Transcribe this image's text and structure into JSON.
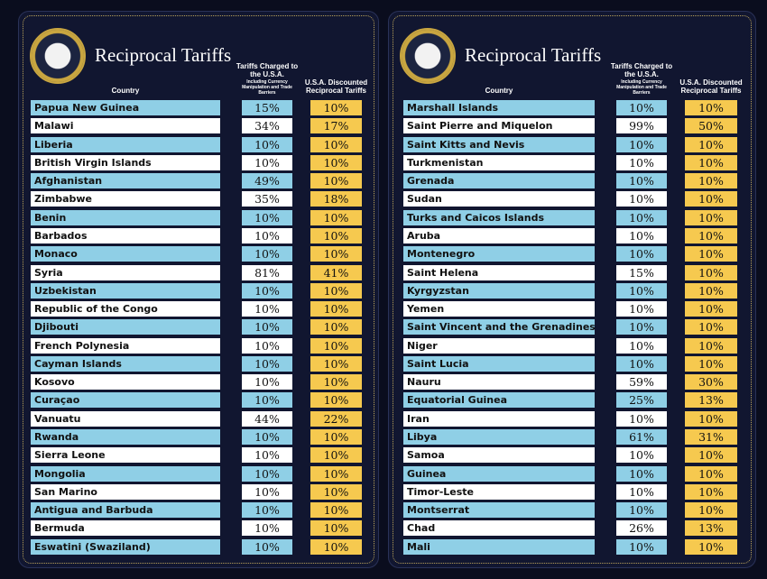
{
  "panels": [
    {
      "title": "Reciprocal Tariffs",
      "header": {
        "country": "Country",
        "charged": "Tariffs Charged to the U.S.A.",
        "charged_note": "Including Currency Manipulation and Trade Barriers",
        "discounted": "U.S.A. Discounted Reciprocal Tariffs"
      },
      "rows": [
        [
          "Papua New Guinea",
          "15%",
          "10%"
        ],
        [
          "Malawi",
          "34%",
          "17%"
        ],
        [
          "Liberia",
          "10%",
          "10%"
        ],
        [
          "British Virgin Islands",
          "10%",
          "10%"
        ],
        [
          "Afghanistan",
          "49%",
          "10%"
        ],
        [
          "Zimbabwe",
          "35%",
          "18%"
        ],
        [
          "Benin",
          "10%",
          "10%"
        ],
        [
          "Barbados",
          "10%",
          "10%"
        ],
        [
          "Monaco",
          "10%",
          "10%"
        ],
        [
          "Syria",
          "81%",
          "41%"
        ],
        [
          "Uzbekistan",
          "10%",
          "10%"
        ],
        [
          "Republic of the Congo",
          "10%",
          "10%"
        ],
        [
          "Djibouti",
          "10%",
          "10%"
        ],
        [
          "French Polynesia",
          "10%",
          "10%"
        ],
        [
          "Cayman Islands",
          "10%",
          "10%"
        ],
        [
          "Kosovo",
          "10%",
          "10%"
        ],
        [
          "Curaçao",
          "10%",
          "10%"
        ],
        [
          "Vanuatu",
          "44%",
          "22%"
        ],
        [
          "Rwanda",
          "10%",
          "10%"
        ],
        [
          "Sierra Leone",
          "10%",
          "10%"
        ],
        [
          "Mongolia",
          "10%",
          "10%"
        ],
        [
          "San Marino",
          "10%",
          "10%"
        ],
        [
          "Antigua and Barbuda",
          "10%",
          "10%"
        ],
        [
          "Bermuda",
          "10%",
          "10%"
        ],
        [
          "Eswatini (Swaziland)",
          "10%",
          "10%"
        ]
      ]
    },
    {
      "title": "Reciprocal Tariffs",
      "header": {
        "country": "Country",
        "charged": "Tariffs Charged to the U.S.A.",
        "charged_note": "Including Currency Manipulation and Trade Barriers",
        "discounted": "U.S.A. Discounted Reciprocal Tariffs"
      },
      "rows": [
        [
          "Marshall Islands",
          "10%",
          "10%"
        ],
        [
          "Saint Pierre and Miquelon",
          "99%",
          "50%"
        ],
        [
          "Saint Kitts and Nevis",
          "10%",
          "10%"
        ],
        [
          "Turkmenistan",
          "10%",
          "10%"
        ],
        [
          "Grenada",
          "10%",
          "10%"
        ],
        [
          "Sudan",
          "10%",
          "10%"
        ],
        [
          "Turks and Caicos Islands",
          "10%",
          "10%"
        ],
        [
          "Aruba",
          "10%",
          "10%"
        ],
        [
          "Montenegro",
          "10%",
          "10%"
        ],
        [
          "Saint Helena",
          "15%",
          "10%"
        ],
        [
          "Kyrgyzstan",
          "10%",
          "10%"
        ],
        [
          "Yemen",
          "10%",
          "10%"
        ],
        [
          "Saint Vincent and the Grenadines",
          "10%",
          "10%"
        ],
        [
          "Niger",
          "10%",
          "10%"
        ],
        [
          "Saint Lucia",
          "10%",
          "10%"
        ],
        [
          "Nauru",
          "59%",
          "30%"
        ],
        [
          "Equatorial Guinea",
          "25%",
          "13%"
        ],
        [
          "Iran",
          "10%",
          "10%"
        ],
        [
          "Libya",
          "61%",
          "31%"
        ],
        [
          "Samoa",
          "10%",
          "10%"
        ],
        [
          "Guinea",
          "10%",
          "10%"
        ],
        [
          "Timor-Leste",
          "10%",
          "10%"
        ],
        [
          "Montserrat",
          "10%",
          "10%"
        ],
        [
          "Chad",
          "26%",
          "13%"
        ],
        [
          "Mali",
          "10%",
          "10%"
        ]
      ]
    }
  ]
}
